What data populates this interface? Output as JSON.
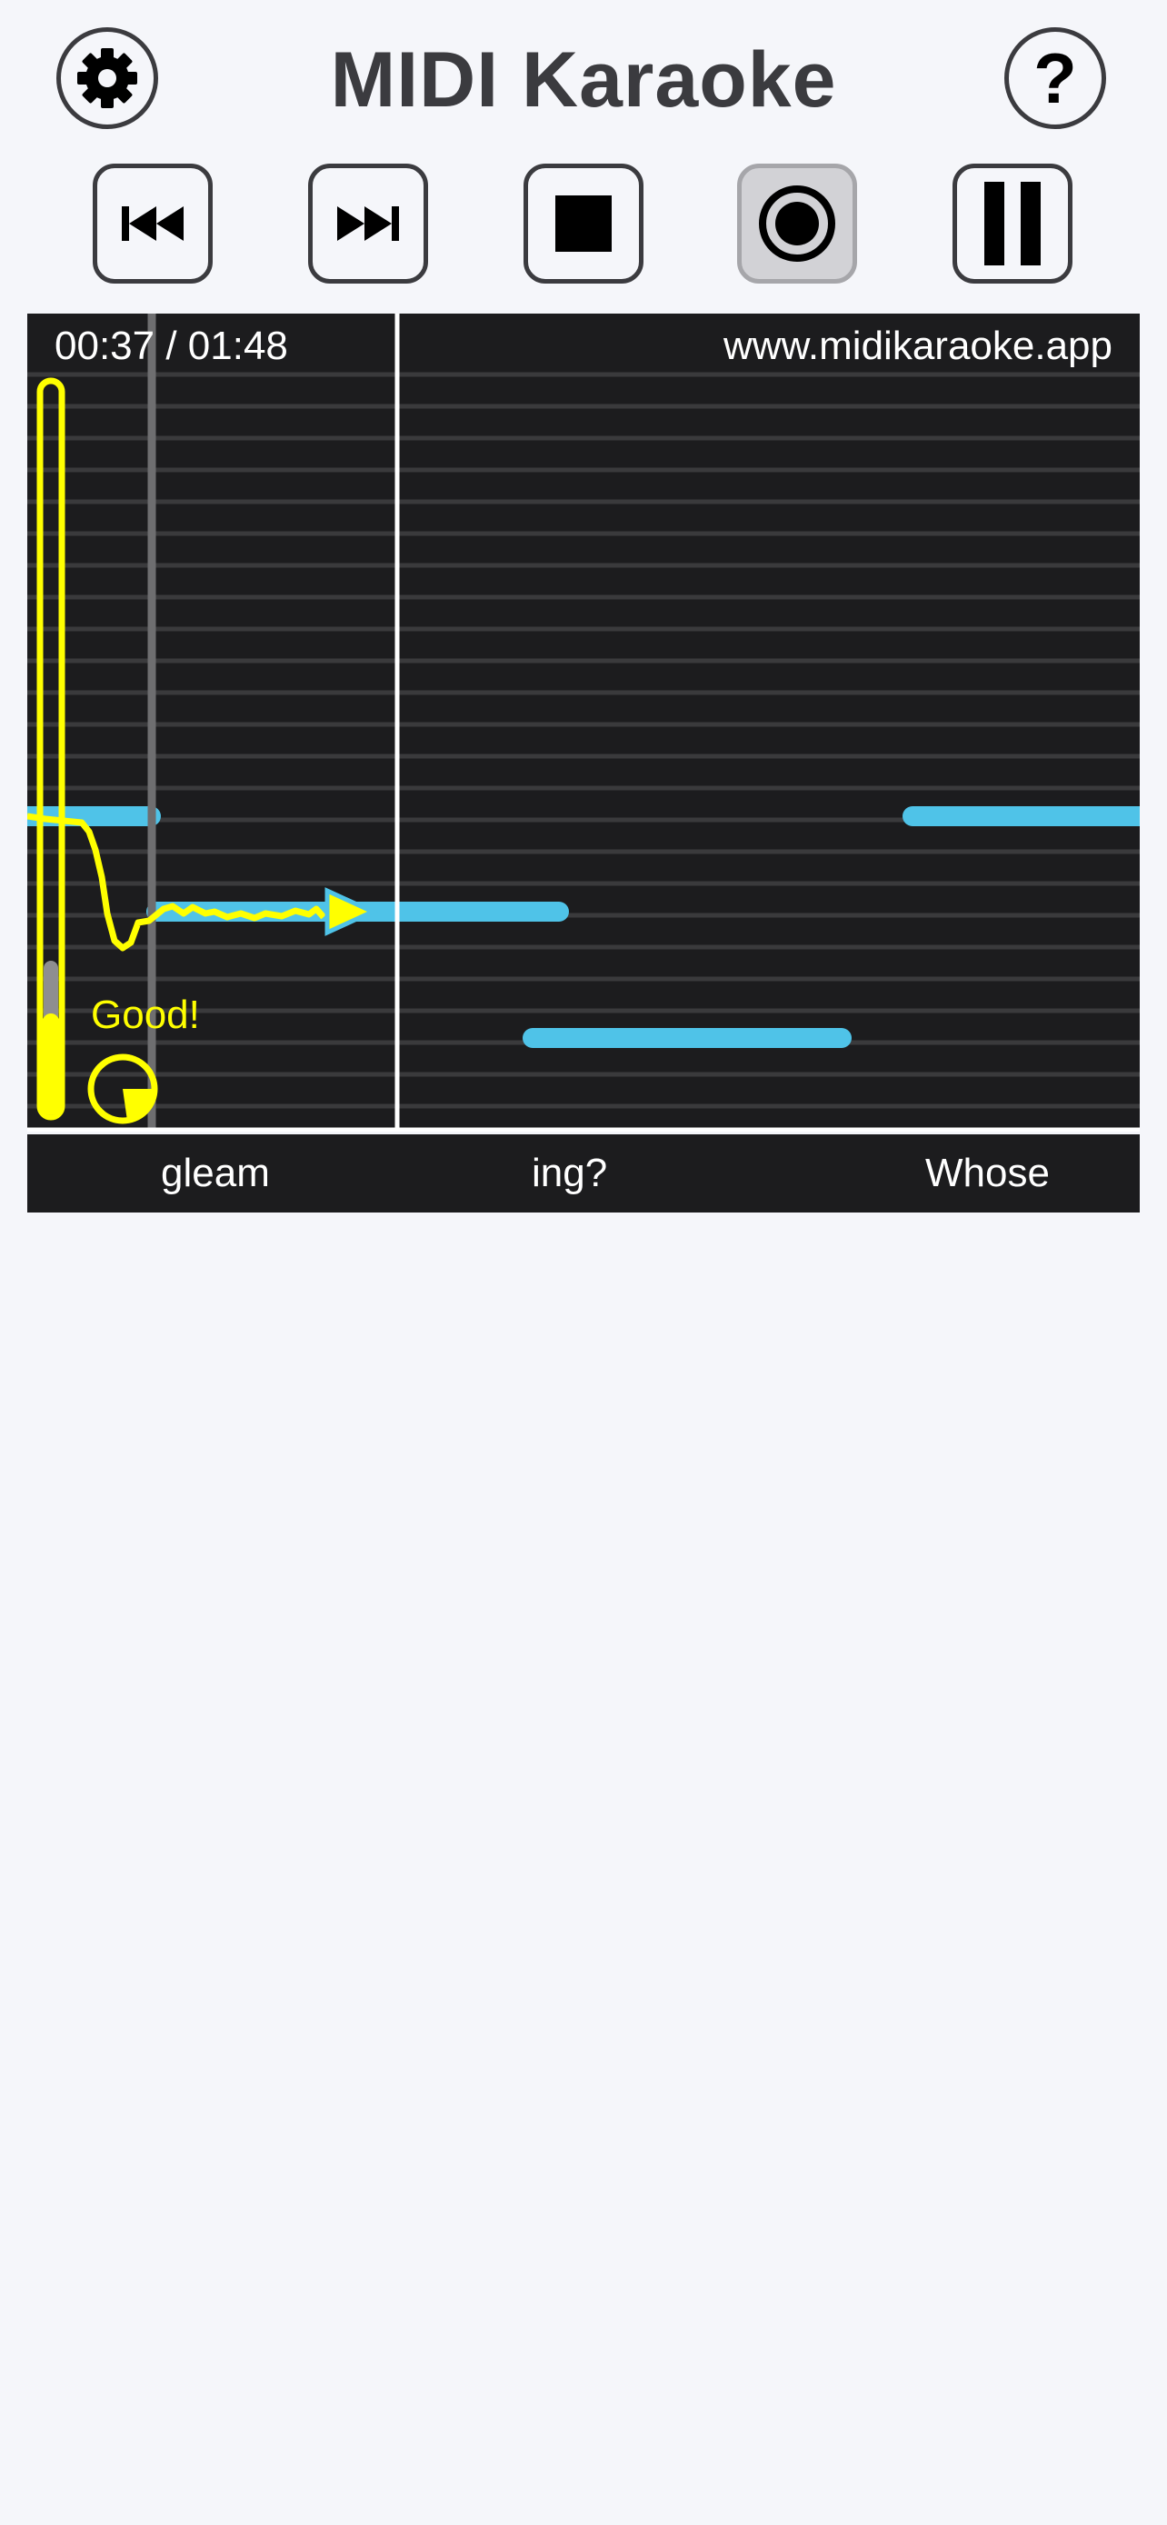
{
  "app": {
    "title": "MIDI Karaoke"
  },
  "header": {
    "settings_icon": "gear-icon",
    "help_icon": "question-mark-icon",
    "help_glyph": "?"
  },
  "controls": {
    "buttons": [
      {
        "name": "skip-back",
        "icon": "skip-back-icon",
        "active": false
      },
      {
        "name": "skip-forward",
        "icon": "skip-forward-icon",
        "active": false
      },
      {
        "name": "stop",
        "icon": "stop-icon",
        "active": false
      },
      {
        "name": "record",
        "icon": "record-icon",
        "active": true
      },
      {
        "name": "pause",
        "icon": "pause-icon",
        "active": false
      }
    ]
  },
  "player": {
    "time": "00:37 / 01:48",
    "watermark": "www.midikaraoke.app",
    "feedback": "Good!",
    "colors": {
      "note": "#4fc3e8",
      "pitch_trace": "#ffff00",
      "background": "#1c1c1e",
      "grid": "#3a3a3c"
    }
  },
  "lyrics": {
    "words": [
      "gleam",
      "ing?",
      "Whose"
    ]
  }
}
